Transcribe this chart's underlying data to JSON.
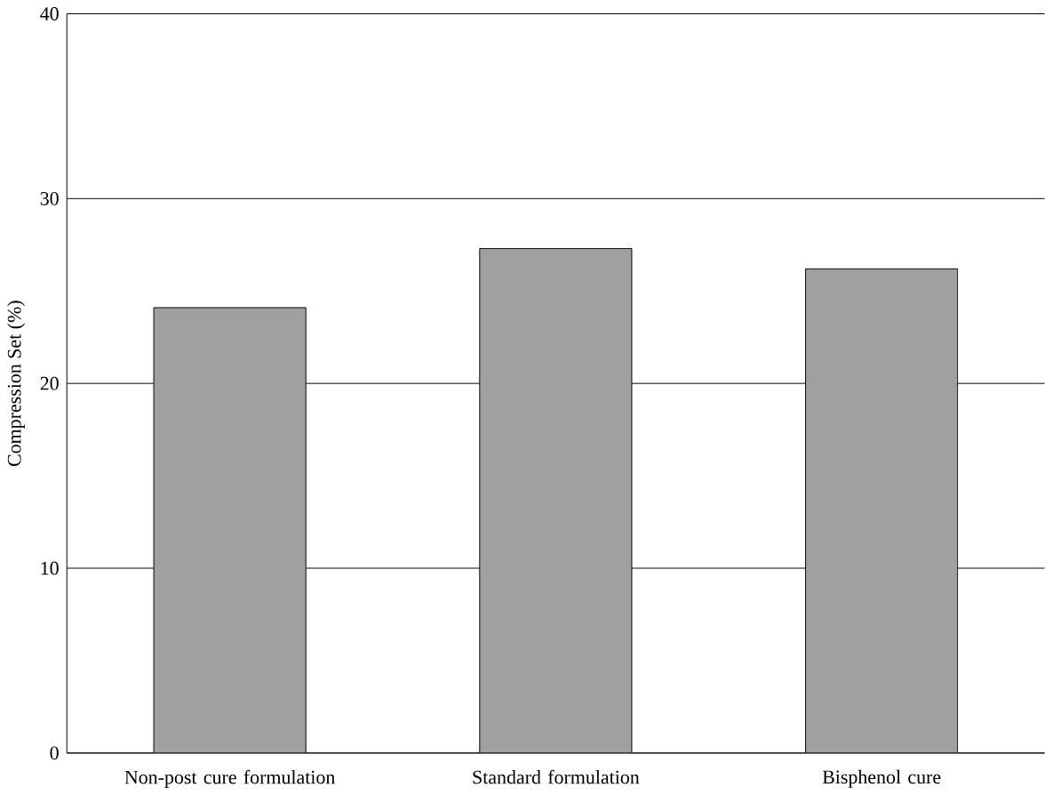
{
  "chart_data": {
    "type": "bar",
    "ylabel": "Compression Set (%)",
    "categories": [
      "Non-post cure formulation",
      "Standard formulation",
      "Bisphenol cure"
    ],
    "values": [
      24.1,
      27.3,
      26.2
    ],
    "color": "#a0a0a0",
    "ylim": [
      0,
      40
    ],
    "yticks": [
      0,
      10,
      20,
      30,
      40
    ],
    "grid": "y"
  }
}
